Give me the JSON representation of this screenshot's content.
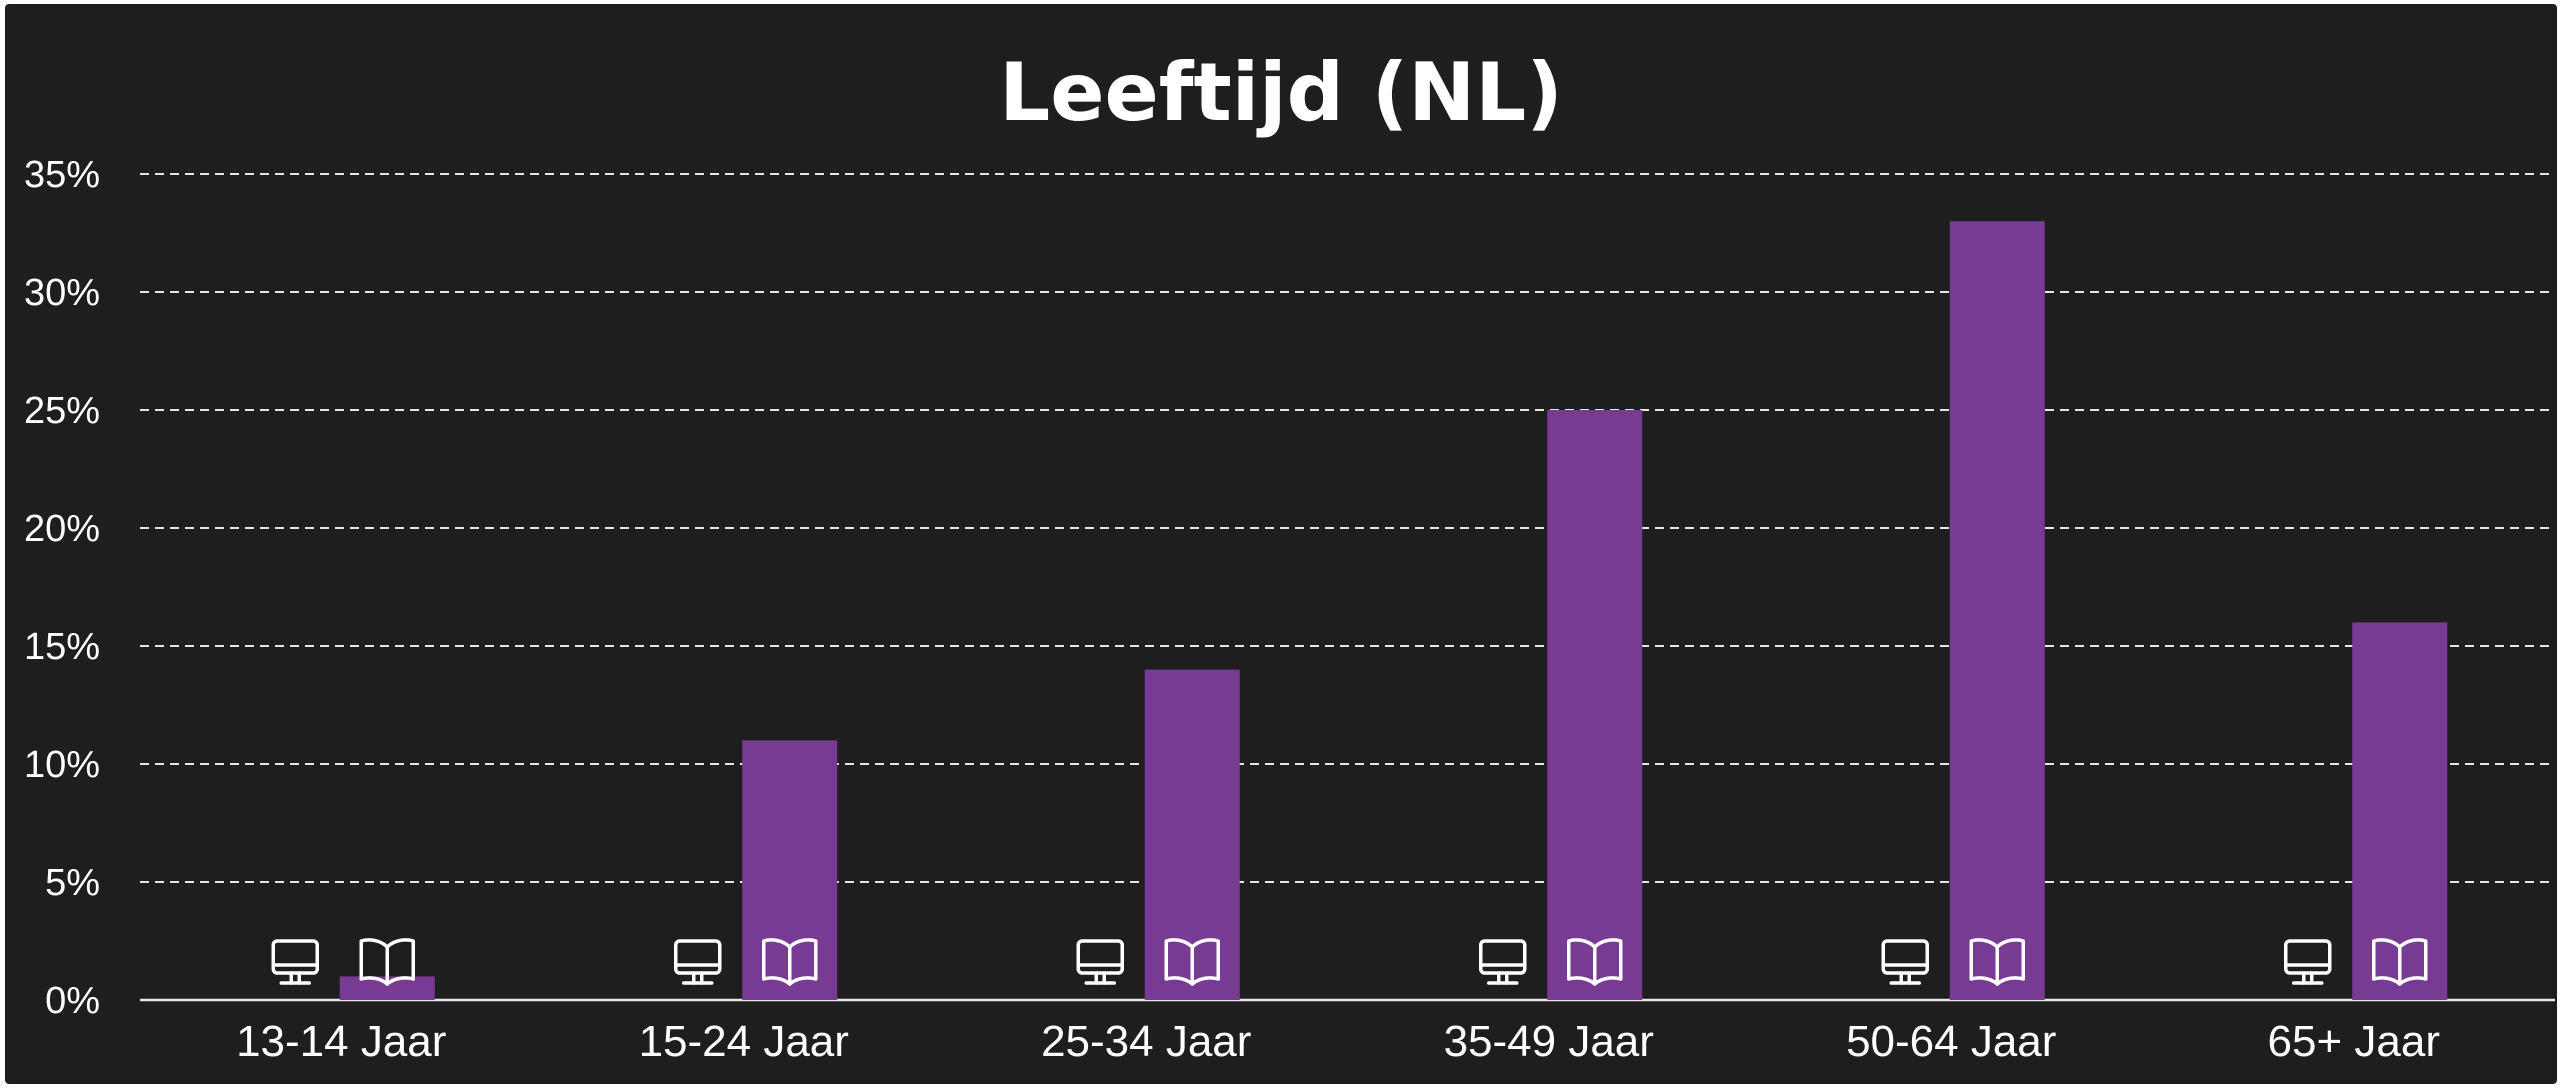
{
  "chart_data": {
    "type": "bar",
    "title": "Leeftijd (NL)",
    "xlabel": "",
    "ylabel": "",
    "categories": [
      "13-14 Jaar",
      "15-24 Jaar",
      "25-34 Jaar",
      "35-49 Jaar",
      "50-64 Jaar",
      "65+ Jaar"
    ],
    "series": [
      {
        "icon": "monitor-icon",
        "values": [
          0,
          0,
          0,
          0,
          0,
          0
        ]
      },
      {
        "icon": "book-icon",
        "values": [
          1,
          11,
          14,
          25,
          33,
          16
        ],
        "color": "#773b93"
      }
    ],
    "ylim": [
      0,
      35
    ],
    "y_ticks": [
      "0%",
      "5%",
      "10%",
      "15%",
      "20%",
      "25%",
      "30%",
      "35%"
    ],
    "grid": true,
    "gridline_style": "dashed",
    "background": "#1e1e1e"
  }
}
